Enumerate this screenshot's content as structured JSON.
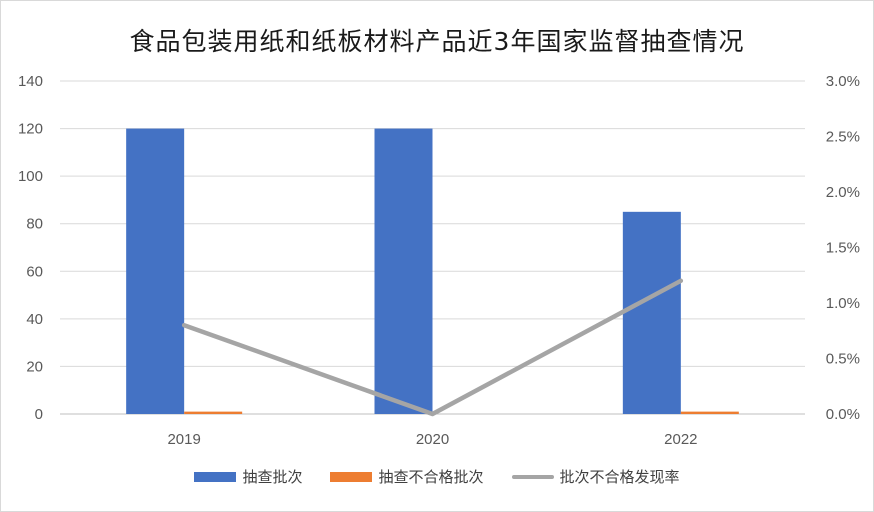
{
  "chart_data": {
    "type": "bar",
    "title": "食品包装用纸和纸板材料产品近3年国家监督抽查情况",
    "categories": [
      "2019",
      "2020",
      "2022"
    ],
    "series": [
      {
        "name": "抽查批次",
        "type": "bar",
        "axis": "left",
        "values": [
          120,
          120,
          85
        ],
        "color": "#4472C4"
      },
      {
        "name": "抽查不合格批次",
        "type": "bar",
        "axis": "left",
        "values": [
          1,
          0,
          1
        ],
        "color": "#ED7D31"
      },
      {
        "name": "批次不合格发现率",
        "type": "line",
        "axis": "right",
        "values": [
          0.008,
          0.0,
          0.012
        ],
        "color": "#A5A5A5"
      }
    ],
    "ylim": [
      0,
      140
    ],
    "yticks": [
      "0",
      "20",
      "40",
      "60",
      "80",
      "100",
      "120",
      "140"
    ],
    "y2lim": [
      0,
      0.03
    ],
    "y2ticks": [
      "0.0%",
      "0.5%",
      "1.0%",
      "1.5%",
      "2.0%",
      "2.5%",
      "3.0%"
    ],
    "grid": true,
    "legend_position": "bottom"
  }
}
